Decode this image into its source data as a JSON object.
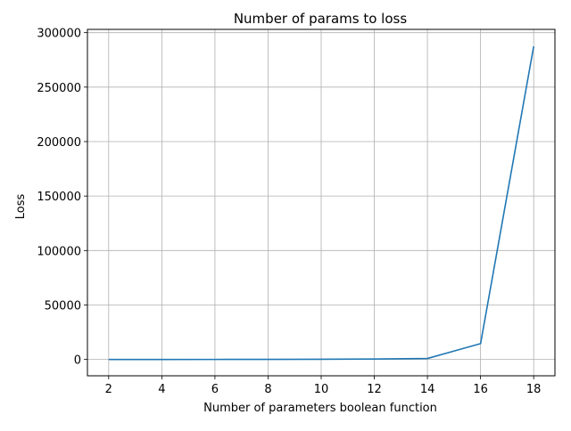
{
  "chart_data": {
    "type": "line",
    "title": "Number of params to loss",
    "xlabel": "Number of parameters boolean function",
    "ylabel": "Loss",
    "xlim": [
      1.2,
      18.8
    ],
    "ylim": [
      -15000,
      303000
    ],
    "xticks": [
      2,
      4,
      6,
      8,
      10,
      12,
      14,
      16,
      18
    ],
    "yticks": [
      0,
      50000,
      100000,
      150000,
      200000,
      250000,
      300000
    ],
    "grid": true,
    "series": [
      {
        "color": "#1f77b4",
        "x": [
          2,
          4,
          6,
          8,
          10,
          12,
          14,
          16,
          18
        ],
        "y": [
          2,
          8,
          25,
          70,
          180,
          350,
          900,
          14500,
          287500
        ]
      }
    ]
  }
}
